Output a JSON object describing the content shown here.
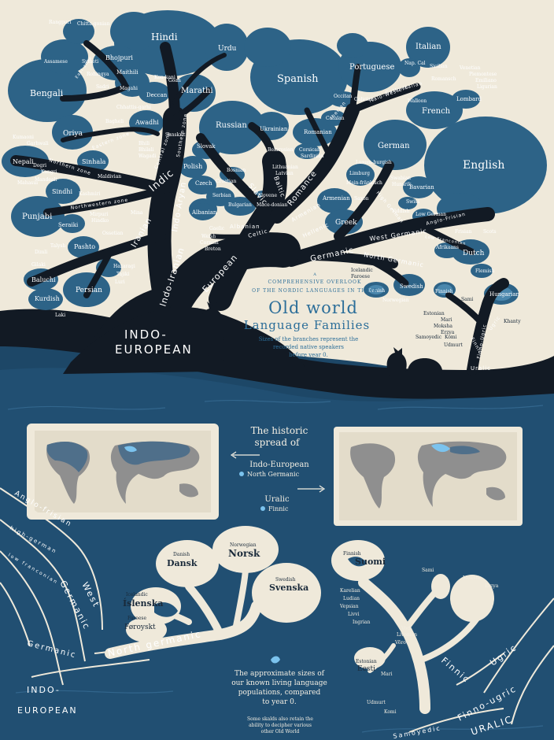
{
  "title": {
    "intro_a": "A",
    "intro_b": "COMPREHENSIVE OVERLOOK",
    "intro_c": "OF THE NORDIC LANGUAGES IN THEIR",
    "main1": "Old world",
    "main2": "Language Families",
    "sub1": "Sizes of the branches represent the",
    "sub2": "recorded native speakers",
    "sub3": "before year 0."
  },
  "branches": {
    "indo_european": [
      "INDO-",
      "EUROPEAN"
    ],
    "indo_iranian": "Indo-Iranian",
    "iranian": "Iranian",
    "indic": "Indic",
    "indo_aryan": "Indo-Aryan",
    "european": "European",
    "slavic": "Slavic",
    "baltic": "Baltic",
    "romance": "Romance",
    "albanian": "Albanian",
    "armenian": "Armenian",
    "hellenic": "Hellenic",
    "celtic": "Celtic",
    "germanic": "Germanic",
    "west_germanic": "West Germanic",
    "north_germanic": "North Germanic",
    "anglo_frisian": "Anglo-Frisian",
    "high_german": "High German",
    "low_franconian": "Low Franconian",
    "italo_western": "Italo-Western",
    "gallo_italian": "Gallo-Italian",
    "iberian": "Iberian",
    "finno_ugric": "Finno-Ugric",
    "ugric": "Ugric",
    "finnic": "Finnic",
    "uralic": "Uralic",
    "northwestern_zone": "Northwestern zone",
    "northern_zone": "Northern zone",
    "eastern_zone": "Eastern zone",
    "central_zone": "Central zone",
    "southern_zone": "Southern zone",
    "east_zone": "East zone"
  },
  "languages": {
    "hindi": "Hindi",
    "urdu": "Urdu",
    "bengali": "Bengali",
    "bhojpuri": "Bhojpuri",
    "rangpuri": "Rangpuri",
    "chittagonian": "Chitta-gonian",
    "assamese": "Assamese",
    "sylheti": "Sylheti",
    "rohingya": "Rohingya",
    "maithili": "Maithili",
    "sadri": "Sadri",
    "magahi": "Magahi",
    "konkani": "Kon-kani",
    "goan": "Goan",
    "marathi": "Marathi",
    "deccan": "Deccan",
    "chhattisgarhi": "Chhattis-garhi",
    "awadhi": "Awadhi",
    "bagheli": "Bagheli",
    "sanskrit": "Sanskrit",
    "oriya": "Oriya",
    "kumaoni": "Kumaoni",
    "garhwali": "Garhwali",
    "nepali": "Nepali",
    "dogri": "Dogri",
    "kangri": "Kangri",
    "mahasui": "Mahasui",
    "mandeali": "Mandeali",
    "sinhala": "Sinhala",
    "maldivian": "Maldivian",
    "sindhi": "Sindhi",
    "kashmiri": "Kashmiri",
    "punjabi": "Punjabi",
    "seraiki": "Seraiki",
    "mina": "Mina",
    "mirpuri": "Mirpuri",
    "hindko": "Hindko",
    "ossetian": "Ossetian",
    "pashto": "Pashto",
    "talysh": "Talysh",
    "dimli": "Dimli",
    "gilaki": "Gilaki",
    "baluchi": "Baluchi",
    "kurdish": "Kurdish",
    "persian": "Persian",
    "hazaragi": "Hazaragi",
    "tajiki": "Tajiki",
    "luri": "Luri",
    "laki": "Laki",
    "bhili": "Bhili",
    "bhilali": "Bhilali",
    "wagadi": "Wagadi",
    "russian": "Russian",
    "ukrainian": "Ukrainian",
    "belarusian": "Belarusian",
    "slovak": "Slovak",
    "polish": "Polish",
    "czech": "Czech",
    "bosnian": "Bosnian",
    "croatian": "Croatian",
    "serbian": "Serbian",
    "bulgarian": "Bulgarian",
    "slovene": "Slovene",
    "macedonian": "Mace-donian",
    "lithuanian": "Lithuanian",
    "latvian": "Latvian",
    "albanian_lang": "Albanian",
    "gaelic": "Gaelic",
    "welsh": "Welsh",
    "cornish": "Cornish",
    "breton": "Breton",
    "spanish": "Spanish",
    "portuguese": "Portuguese",
    "italian": "Italian",
    "napolitan": "Nap. Cal",
    "sicilian": "Sicilian",
    "venetian": "Venetian",
    "piemontese": "Piemontese",
    "emiliano": "Emiliano",
    "ligurian": "Ligurian",
    "romansch": "Romansch",
    "lombard": "Lombard",
    "walloon": "Walloon",
    "french": "French",
    "occitan": "Occitan",
    "galician": "Galician",
    "catalan": "Catalan",
    "romanian": "Romanian",
    "corsican": "Corsican",
    "sardinian": "Sardinian",
    "armenian_lang": "Armenian",
    "greek": "Greek",
    "german": "German",
    "english": "English",
    "luxembourgish": "Luxem-burgish",
    "limburg": "Limburg",
    "mainfrankisch": "Main-fränkisch",
    "saxon": "Saxon",
    "swabian": "Swabian",
    "hunsrik": "Hunsrik",
    "bavarian": "Bavarian",
    "swiss": "Swiss",
    "yiddish": "Yiddish",
    "low_german": "Low German",
    "frisian": "Frisian",
    "scots": "Scots",
    "afrikaans": "Afrikaans",
    "dutch": "Dutch",
    "flemish": "Flemish",
    "icelandic": "Icelandic",
    "faroese": "Faroese",
    "danish": "Danish",
    "swedish": "Swedish",
    "norwegian": "Norwegian",
    "finnish": "Finnish",
    "sami": "Sami",
    "hungarian": "Hungarian",
    "khanty": "Khanty",
    "estonian": "Estonian",
    "mari": "Mari",
    "moksha": "Moksha",
    "erzya": "Erzya",
    "samoyedic": "Samoyedic",
    "komi": "Komi",
    "udmurt": "Udmurt"
  },
  "spread": {
    "heading1": "The historic",
    "heading2": "spread of",
    "ie": "Indo-European",
    "ng": "North Germanic",
    "uralic": "Uralic",
    "finnic": "Finnic"
  },
  "nordic_north_germanic": {
    "danish_small": "Danish",
    "danish_big": "Dansk",
    "norwegian_small": "Norwegian",
    "norwegian_big": "Norsk",
    "swedish_small": "Swedish",
    "swedish_big": "Svenska",
    "icelandic_small": "Icelandic",
    "icelandic_big": "Íslenska",
    "faroese_small": "Faroese",
    "faroese_big": "Føroyskt"
  },
  "nordic_uralic": {
    "finnish_small": "Finnish",
    "finnish_big": "Suomi",
    "estonian_small": "Estonian",
    "estonian_big": "Eesti",
    "karelian": "Karelian",
    "ludian": "Ludian",
    "vepsian": "Vepsian",
    "livvi": "Livvi",
    "ingrian": "Ingrian",
    "vod": "Vod",
    "livonian": "Livonian",
    "voro": "Võro",
    "sami": "Sami",
    "moksha": "Moksha",
    "erzya": "Erzya",
    "mari": "Mari",
    "udmurt": "Udmurt",
    "komi": "Komi"
  },
  "bottom_branches": {
    "anglo_frisian": "Anglo-frisian",
    "high_german": "high-german",
    "low_franconian": "low franconian",
    "west": "West",
    "germanic_west": "Germanic",
    "north_germanic": "North germanic",
    "germanic": "Germanic",
    "indo": "INDO-",
    "european": "EUROPEAN",
    "finnic": "Finnic",
    "ugric": "Ugric",
    "finno_ugric": "Finno-ugric",
    "uralic": "URALIC",
    "samoyedic": "Samoyedic"
  },
  "notes": {
    "sizes1": "The approximate sizes of",
    "sizes2": "our known living language",
    "sizes3": "populations, compared",
    "sizes4": "to year 0.",
    "skalds1": "Some skalds also retain the",
    "skalds2": "ability to decipher various",
    "skalds3": "other Old World"
  },
  "colors": {
    "paper": "#efe9da",
    "ink": "#131c26",
    "leaf": "#2d6387",
    "leaf_light": "#4a87ad",
    "water": "#1f4a6b",
    "highlight": "#7bc3ee"
  }
}
